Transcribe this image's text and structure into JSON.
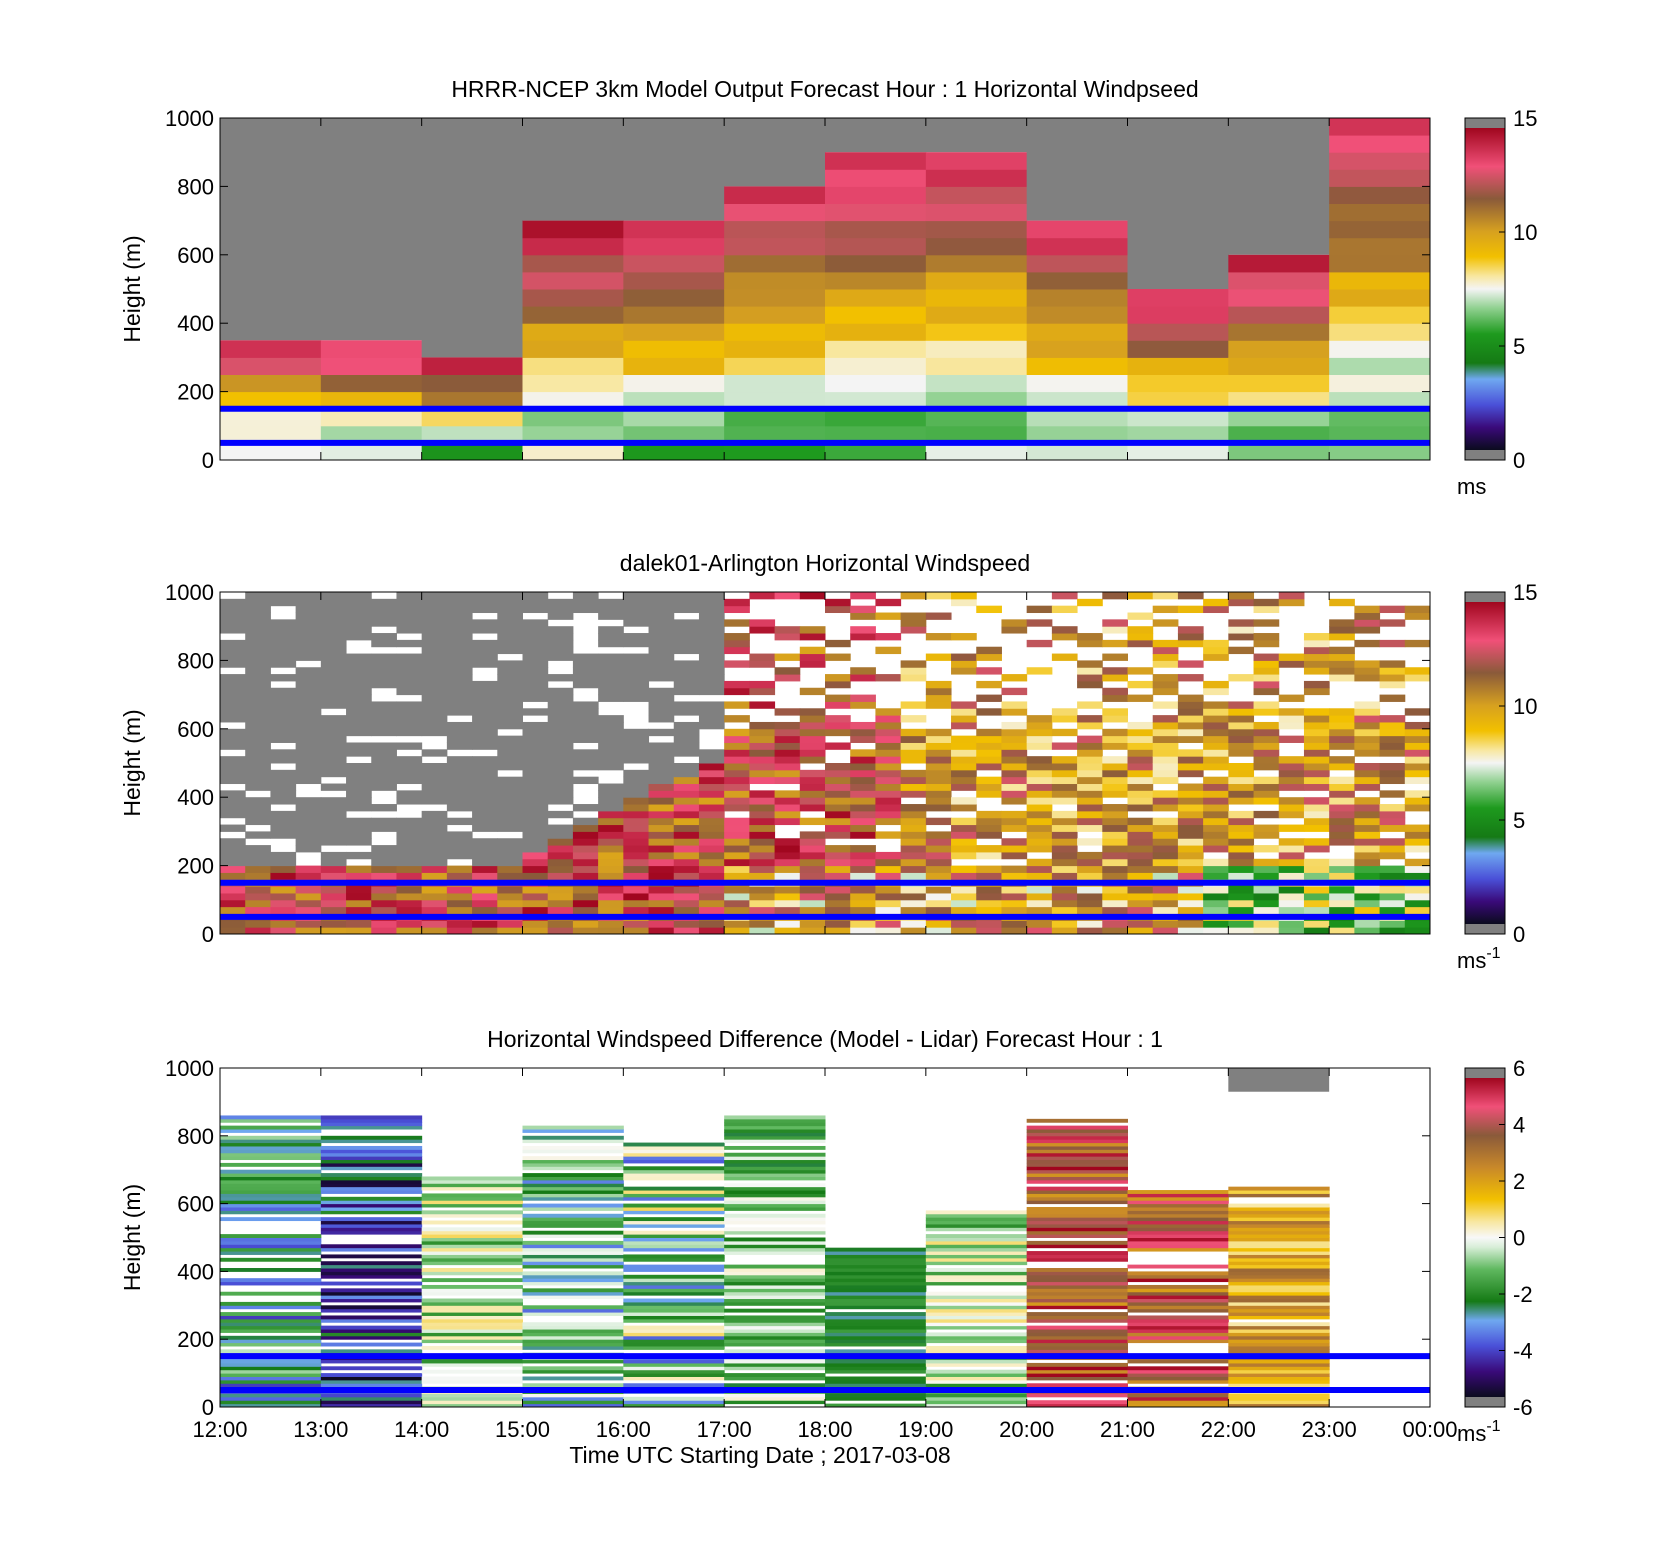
{
  "figure": {
    "xlabel": "Time UTC  Starting Date ; 2017-03-08",
    "xticks": [
      "12:00",
      "13:00",
      "14:00",
      "15:00",
      "16:00",
      "17:00",
      "18:00",
      "19:00",
      "20:00",
      "21:00",
      "22:00",
      "23:00",
      "00:00"
    ]
  },
  "chart_data": [
    {
      "type": "heatmap",
      "title": "HRRR-NCEP 3km Model Output   Forecast Hour : 1 Horizontal Windpseed",
      "ylabel": "Height (m)",
      "ylim": [
        0,
        1000
      ],
      "yticks": [
        "0",
        "200",
        "400",
        "600",
        "800",
        "1000"
      ],
      "x_range": [
        "12:00",
        "00:00"
      ],
      "grid": false,
      "colorbar": {
        "ticks": [
          "0",
          "5",
          "10",
          "15"
        ],
        "range": [
          0,
          15
        ],
        "unit": "ms",
        "unit_sup": ""
      },
      "reference_lines_m": [
        150,
        50
      ],
      "data_notes": "hourly columns 12:00-23:00; grey = no data; top of data per hour",
      "top_of_data_m": [
        350,
        350,
        300,
        700,
        700,
        800,
        900,
        900,
        700,
        500,
        600
      ],
      "hours": [
        "12:00",
        "13:00",
        "14:00",
        "15:00",
        "16:00",
        "17:00",
        "18:00",
        "19:00",
        "20:00",
        "21:00",
        "22:00"
      ]
    },
    {
      "type": "heatmap",
      "title": "dalek01-Arlington  Horizontal Windspeed",
      "ylabel": "Height (m)",
      "ylim": [
        0,
        1000
      ],
      "yticks": [
        "0",
        "200",
        "400",
        "600",
        "800",
        "1000"
      ],
      "x_range": [
        "12:00",
        "00:00"
      ],
      "grid": false,
      "colorbar": {
        "ticks": [
          "0",
          "5",
          "10",
          "15"
        ],
        "range": [
          0,
          15
        ],
        "unit": "ms",
        "unit_sup": "-1"
      },
      "reference_lines_m": [
        150,
        50
      ]
    },
    {
      "type": "heatmap",
      "title": "Horizontal Windspeed Difference (Model - Lidar) Forecast Hour : 1",
      "ylabel": "Height (m)",
      "ylim": [
        0,
        1000
      ],
      "yticks": [
        "0",
        "200",
        "400",
        "600",
        "800",
        "1000"
      ],
      "x_range": [
        "12:00",
        "00:00"
      ],
      "grid": false,
      "colorbar": {
        "ticks": [
          "-6",
          "-4",
          "-2",
          "0",
          "2",
          "4",
          "6"
        ],
        "range": [
          -6,
          6
        ],
        "unit": "ms",
        "unit_sup": "-1"
      },
      "reference_lines_m": [
        150,
        50
      ]
    }
  ]
}
